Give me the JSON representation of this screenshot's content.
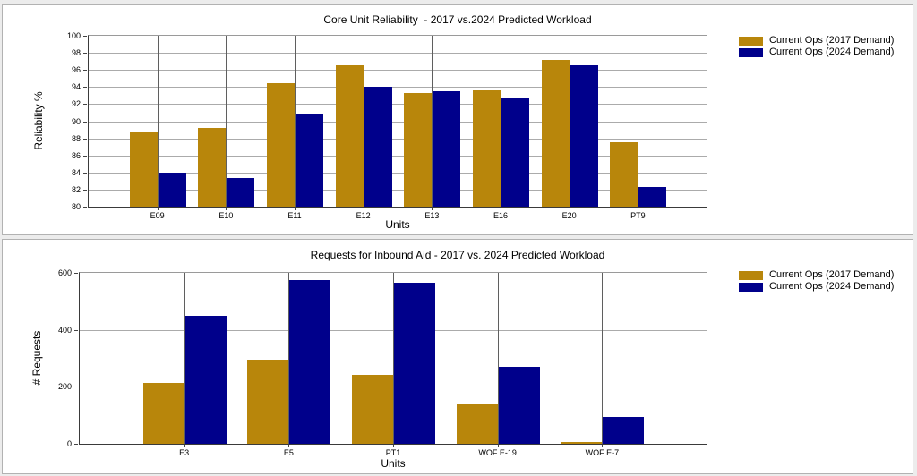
{
  "window": {
    "background": "#ececec",
    "panel_background": "#ffffff",
    "panel_border": "#b2b2b2"
  },
  "colors": {
    "series_2017": "#B8860B",
    "series_2024": "#00008B",
    "h_gridline": "#ababab",
    "v_gridline": "#5f5f5f",
    "axis": "#3a3a3a"
  },
  "chart_data": [
    {
      "type": "bar",
      "title": "Core Unit Reliability  - 2017 vs.2024 Predicted Workload",
      "xlabel": "Units",
      "ylabel": "Reliability %",
      "ylim": [
        80,
        100
      ],
      "ytick_step": 2,
      "grid": true,
      "legend_position": "right",
      "categories": [
        "E09",
        "E10",
        "E11",
        "E12",
        "E13",
        "E16",
        "E20",
        "PT9"
      ],
      "series": [
        {
          "name": "Current Ops (2017 Demand)",
          "color": "#B8860B",
          "values": [
            88.8,
            89.2,
            94.5,
            96.5,
            93.3,
            93.6,
            97.2,
            87.5
          ]
        },
        {
          "name": "Current Ops (2024 Demand)",
          "color": "#00008B",
          "values": [
            84.0,
            83.4,
            90.9,
            94.0,
            93.5,
            92.8,
            96.5,
            82.3
          ]
        }
      ]
    },
    {
      "type": "bar",
      "title": "Requests for Inbound Aid - 2017 vs. 2024 Predicted Workload",
      "xlabel": "Units",
      "ylabel": "# Requests",
      "ylim": [
        0,
        600
      ],
      "ytick_step": 200,
      "grid": true,
      "legend_position": "right",
      "categories": [
        "E3",
        "E5",
        "PT1",
        "WOF E-19",
        "WOF E-7"
      ],
      "series": [
        {
          "name": "Current Ops (2017 Demand)",
          "color": "#B8860B",
          "values": [
            215,
            295,
            242,
            140,
            5
          ]
        },
        {
          "name": "Current Ops (2024 Demand)",
          "color": "#00008B",
          "values": [
            450,
            575,
            567,
            270,
            95
          ]
        }
      ]
    }
  ]
}
